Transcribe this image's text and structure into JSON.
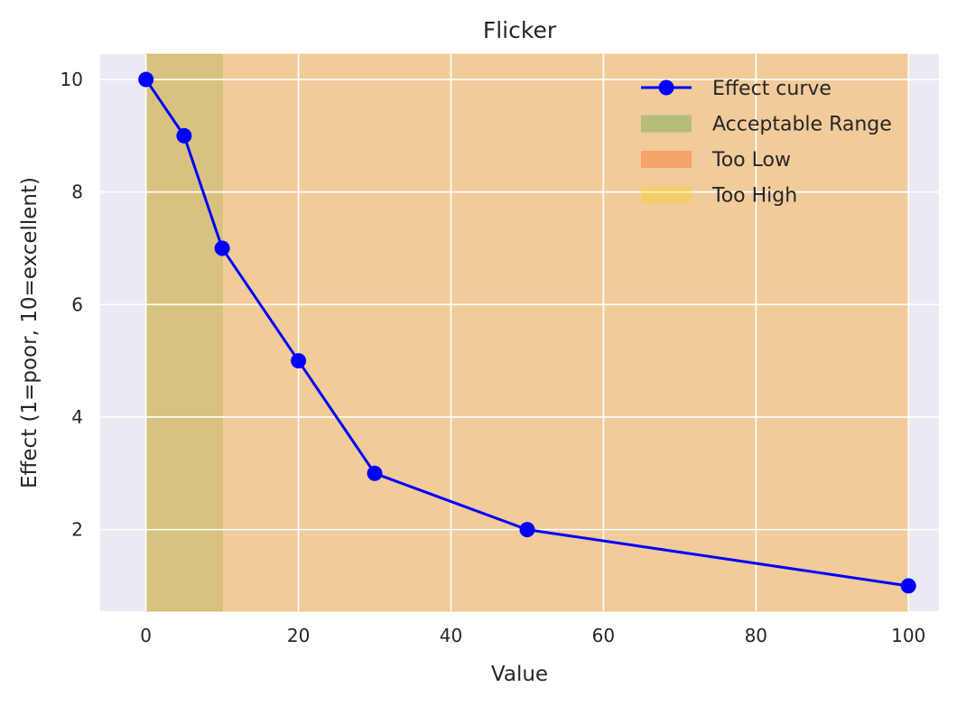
{
  "chart_data": {
    "type": "line",
    "title": "Flicker",
    "xlabel": "Value",
    "ylabel": "Effect (1=poor, 10=excellent)",
    "xlim": [
      -6,
      104
    ],
    "ylim": [
      0.55,
      10.45
    ],
    "xticks": [
      0,
      20,
      40,
      60,
      80,
      100
    ],
    "yticks": [
      2,
      4,
      6,
      8,
      10
    ],
    "grid": true,
    "legend_position": "upper right",
    "series": [
      {
        "name": "Effect curve",
        "color": "#0000ff",
        "marker": "circle",
        "x": [
          0,
          5,
          10,
          20,
          30,
          50,
          100
        ],
        "y": [
          10,
          9,
          7,
          5,
          3,
          2,
          1
        ]
      }
    ],
    "ranges": [
      {
        "name": "Acceptable Range",
        "x": [
          0,
          10
        ],
        "color": "#2ca02c",
        "opacity": 0.2
      },
      {
        "name": "Too Low",
        "x": [
          0,
          100
        ],
        "color": "#ff4500",
        "opacity": 0.2
      },
      {
        "name": "Too High",
        "x": [
          0,
          100
        ],
        "color": "#ffd700",
        "opacity": 0.2
      }
    ],
    "legend": [
      "Effect curve",
      "Acceptable Range",
      "Too Low",
      "Too High"
    ],
    "colors": {
      "plot_background": "#eaeaf2",
      "grid": "#ffffff",
      "text": "#262626"
    }
  }
}
